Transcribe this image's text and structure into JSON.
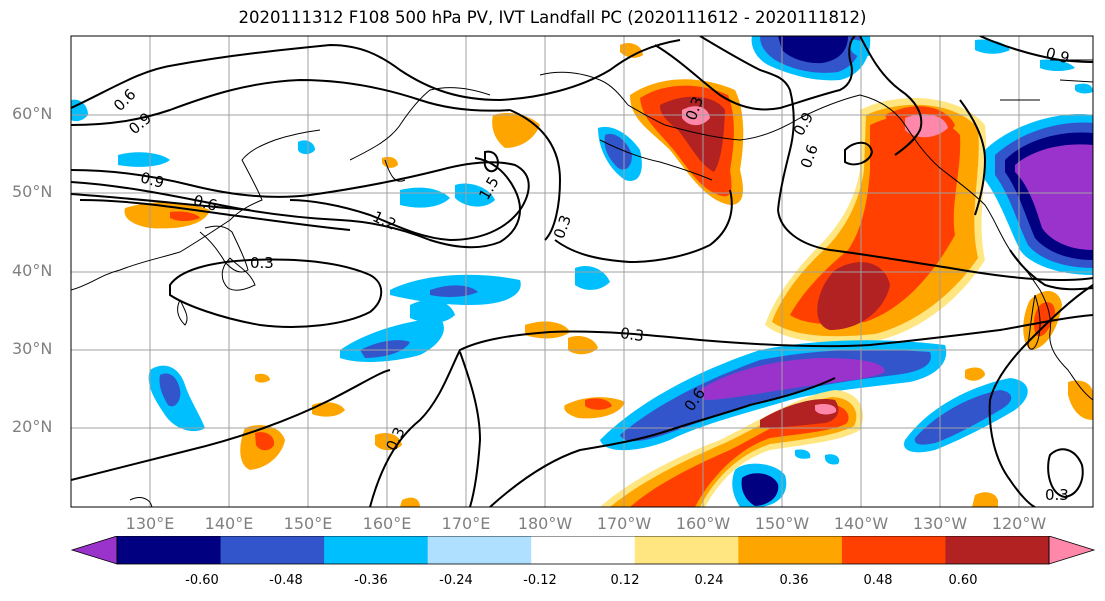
{
  "title": "2020111312 F108 500 hPa PV, IVT Landfall PC (2020111612 - 2020111812)",
  "lat_labels": [
    "60°N",
    "50°N",
    "40°N",
    "30°N",
    "20°N"
  ],
  "lon_labels": [
    "130°E",
    "140°E",
    "150°E",
    "160°E",
    "170°E",
    "180°W",
    "170°W",
    "160°W",
    "150°W",
    "140°W",
    "130°W",
    "120°W"
  ],
  "contour_labels": [
    "0.6",
    "0.9",
    "0.9",
    "0.6",
    "1.2",
    "1.5",
    "0.3",
    "0.3",
    "0.3",
    "0.9",
    "0.9",
    "0.6",
    "0.3",
    "0.3",
    "0.3",
    "0.6"
  ],
  "colorbar": {
    "ticks": [
      "-0.60",
      "-0.48",
      "-0.36",
      "-0.24",
      "-0.12",
      "0.12",
      "0.24",
      "0.36",
      "0.48",
      "0.60"
    ],
    "colors": [
      "#9933cc",
      "#000080",
      "#3355cc",
      "#00bfff",
      "#b0e0ff",
      "#ffffff",
      "#ffe680",
      "#ffa500",
      "#ff4000",
      "#b22222",
      "#ff88aa"
    ]
  }
}
